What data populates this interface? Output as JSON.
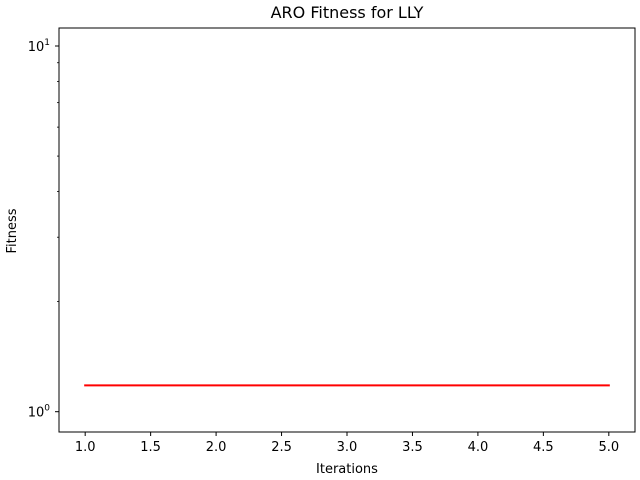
{
  "chart_data": {
    "type": "line",
    "title": "ARO Fitness for LLY",
    "xlabel": "Iterations",
    "ylabel": "Fitness",
    "x": [
      1,
      2,
      3,
      4,
      5
    ],
    "series": [
      {
        "values": [
          1.18,
          1.18,
          1.18,
          1.18,
          1.18
        ],
        "color": "#ff0000"
      }
    ],
    "xlim": [
      0.8,
      5.2
    ],
    "ylim": [
      0.88,
      11.2
    ],
    "yscale": "log",
    "xticks": [
      1.0,
      1.5,
      2.0,
      2.5,
      3.0,
      3.5,
      4.0,
      4.5,
      5.0
    ],
    "xtick_labels": [
      "1.0",
      "1.5",
      "2.0",
      "2.5",
      "3.0",
      "3.5",
      "4.0",
      "4.5",
      "5.0"
    ],
    "yticks_major": [
      1,
      10
    ],
    "ytick_labels": [
      {
        "base": "10",
        "exp": "0"
      },
      {
        "base": "10",
        "exp": "1"
      }
    ],
    "yticks_minor": [
      2,
      3,
      4,
      5,
      6,
      7,
      8,
      9
    ],
    "grid": false,
    "legend": false
  }
}
